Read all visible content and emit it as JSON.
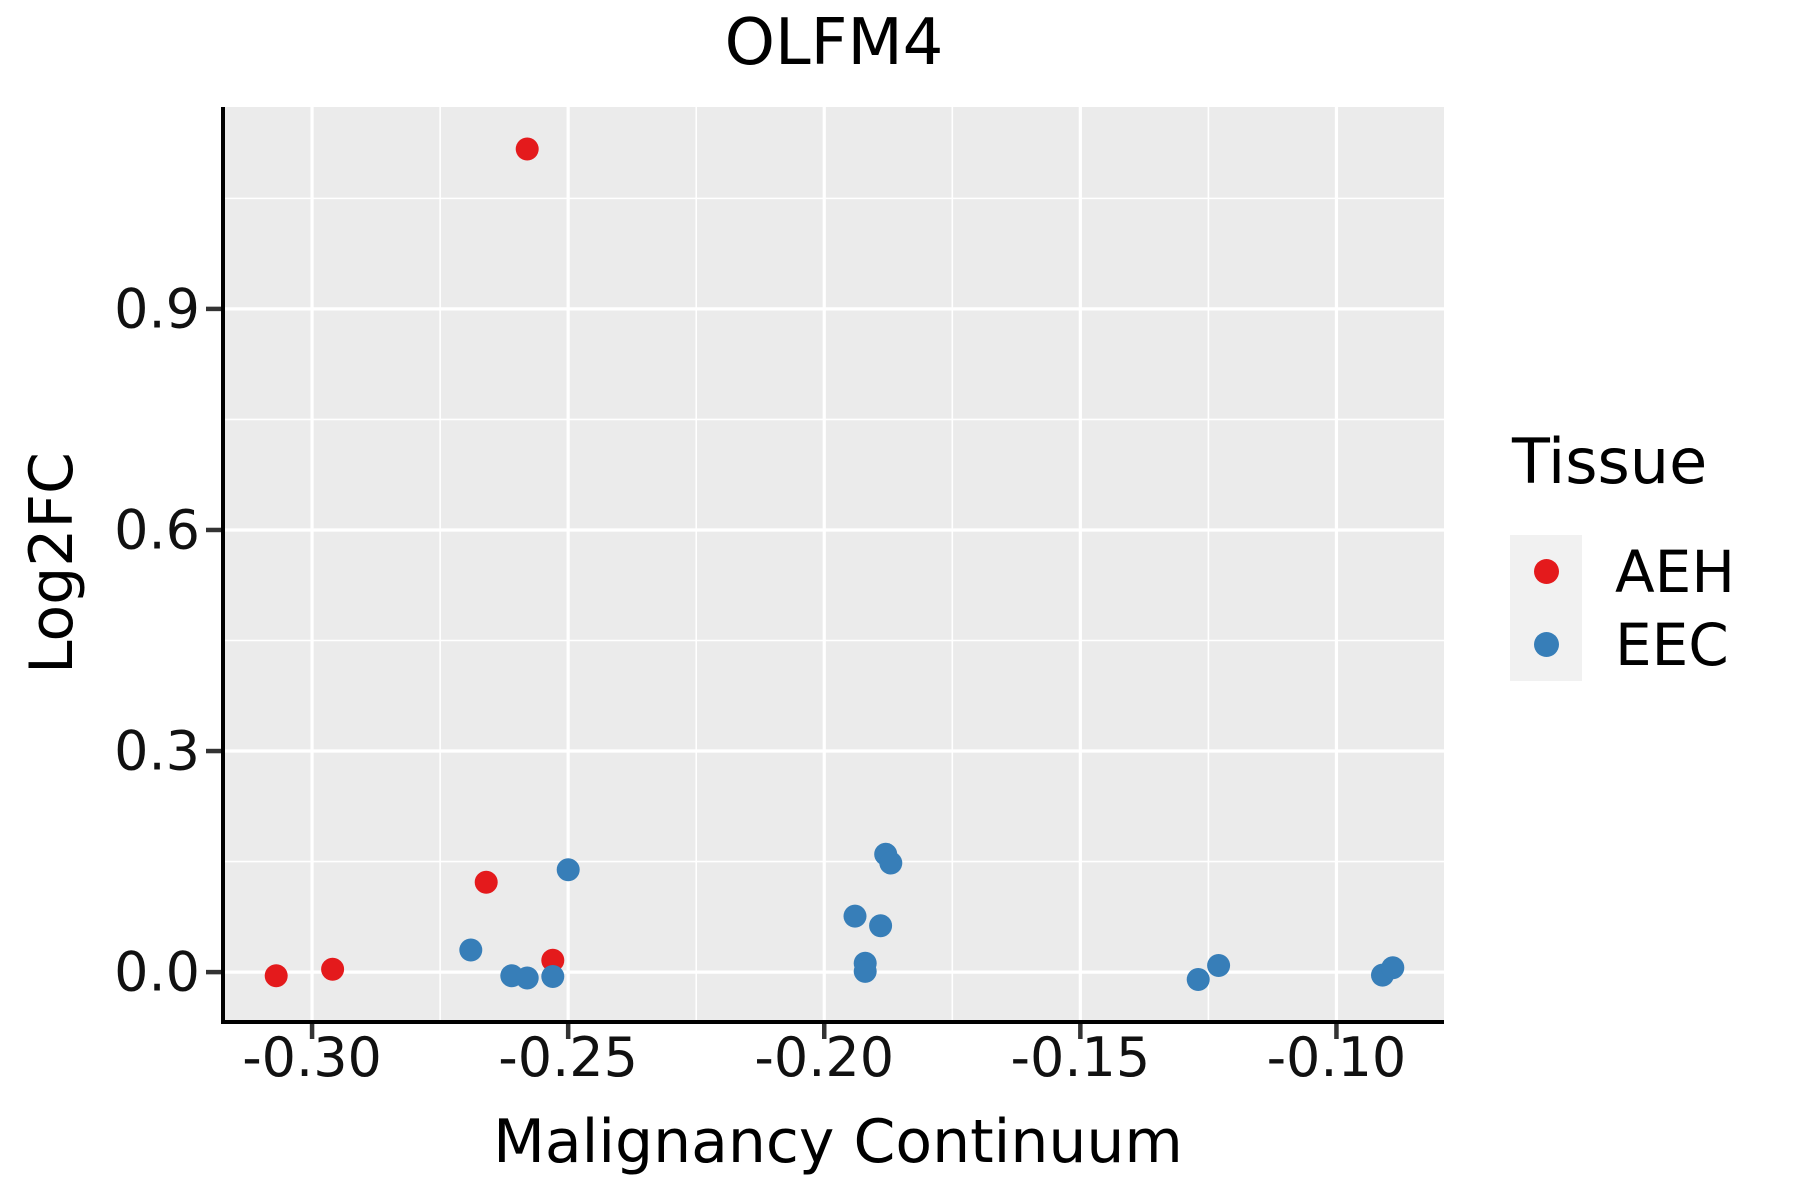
{
  "figure": {
    "title": "OLFM4",
    "x_axis_label": "Malignancy Continuum",
    "y_axis_label": "Log2FC"
  },
  "legend": {
    "title": "Tissue",
    "items": [
      {
        "label": "AEH",
        "color": "#E41A1C"
      },
      {
        "label": "EEC",
        "color": "#377EB8"
      }
    ]
  },
  "chart_data": {
    "type": "scatter",
    "title": "OLFM4",
    "xlabel": "Malignancy Continuum",
    "ylabel": "Log2FC",
    "xlim": [
      -0.317,
      -0.079
    ],
    "ylim": [
      -0.065,
      1.174
    ],
    "x_ticks": [
      -0.3,
      -0.25,
      -0.2,
      -0.15,
      -0.1
    ],
    "x_tick_labels": [
      "-0.30",
      "-0.25",
      "-0.20",
      "-0.15",
      "-0.10"
    ],
    "y_ticks": [
      0.0,
      0.3,
      0.6,
      0.9
    ],
    "y_tick_labels": [
      "0.0",
      "0.3",
      "0.6",
      "0.9"
    ],
    "x_minor_gridlines": [
      -0.275,
      -0.225,
      -0.175,
      -0.125
    ],
    "y_minor_gridlines": [
      0.15,
      0.45,
      0.75,
      1.05
    ],
    "grid": true,
    "legend_position": "right",
    "panel_background": "#EBEBEB",
    "gridline_color": "#FFFFFF",
    "marker_radius_px": 11.5,
    "series": [
      {
        "name": "AEH",
        "color": "#E41A1C",
        "points": [
          [
            -0.307,
            -0.005
          ],
          [
            -0.296,
            0.004
          ],
          [
            -0.266,
            0.122
          ],
          [
            -0.253,
            0.016
          ],
          [
            -0.258,
            1.117
          ]
        ]
      },
      {
        "name": "EEC",
        "color": "#377EB8",
        "points": [
          [
            -0.269,
            0.03
          ],
          [
            -0.261,
            -0.005
          ],
          [
            -0.258,
            -0.008
          ],
          [
            -0.253,
            -0.006
          ],
          [
            -0.25,
            0.139
          ],
          [
            -0.194,
            0.076
          ],
          [
            -0.189,
            0.063
          ],
          [
            -0.188,
            0.16
          ],
          [
            -0.187,
            0.148
          ],
          [
            -0.192,
            0.012
          ],
          [
            -0.192,
            0.001
          ],
          [
            -0.127,
            -0.01
          ],
          [
            -0.123,
            0.009
          ],
          [
            -0.091,
            -0.004
          ],
          [
            -0.089,
            0.006
          ]
        ]
      }
    ]
  }
}
